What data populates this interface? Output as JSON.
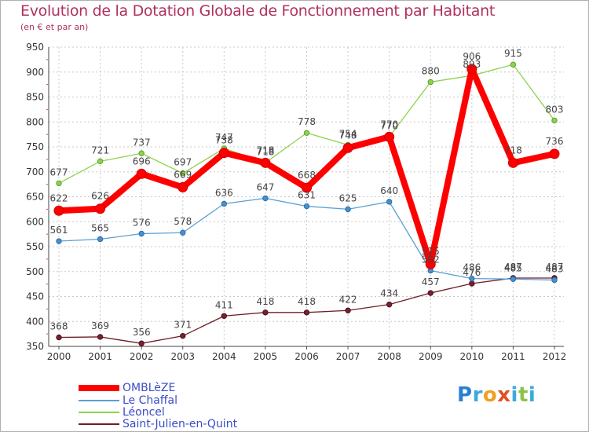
{
  "chart_data": {
    "type": "line",
    "title": "Evolution de la Dotation Globale de Fonctionnement par Habitant",
    "subtitle": "(en € et par an)",
    "xlabel": "",
    "ylabel": "",
    "ylim": [
      350,
      950
    ],
    "ytick_step": 50,
    "categories": [
      "2000",
      "2001",
      "2002",
      "2003",
      "2004",
      "2005",
      "2006",
      "2007",
      "2008",
      "2009",
      "2010",
      "2011",
      "2012"
    ],
    "series": [
      {
        "name": "OMBLèZE",
        "color": "#ff0000",
        "values": [
          622,
          626,
          696,
          669,
          738,
          718,
          668,
          748,
          770,
          515,
          906,
          718,
          736
        ]
      },
      {
        "name": "Le Chaffal",
        "color": "#5a9fd4",
        "values": [
          561,
          565,
          576,
          578,
          636,
          647,
          631,
          625,
          640,
          502,
          486,
          485,
          483
        ]
      },
      {
        "name": "Léoncel",
        "color": "#8fd14f",
        "values": [
          677,
          721,
          737,
          697,
          747,
          718,
          778,
          754,
          770,
          880,
          893,
          915,
          803
        ]
      },
      {
        "name": "Saint-Julien-en-Quint",
        "color": "#6e1f2a",
        "values": [
          368,
          369,
          356,
          371,
          411,
          418,
          418,
          422,
          434,
          457,
          476,
          487,
          487
        ]
      }
    ],
    "legend_position": "bottom-left"
  },
  "brand": {
    "letters": [
      "P",
      "r",
      "o",
      "x",
      "i",
      "t",
      "i"
    ],
    "colors": [
      "#2a7fd4",
      "#3aa9e0",
      "#f0a020",
      "#e05020",
      "#3aa9e0",
      "#8bc34a",
      "#3aa9e0"
    ]
  }
}
